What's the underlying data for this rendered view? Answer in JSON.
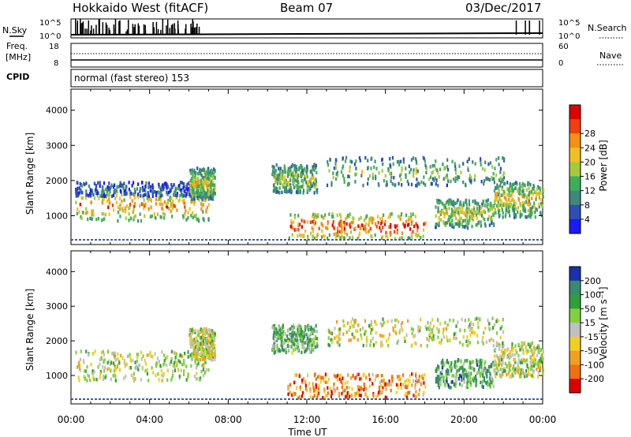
{
  "header": {
    "radar": "Hokkaido West (fitACF)",
    "beam": "Beam 07",
    "date": "03/Dec/2017"
  },
  "summary": {
    "nsky_label": "N.Sky",
    "nsearch_label": "N.Search",
    "nsky_ticks": [
      "10^5",
      "10^0"
    ],
    "nsearch_ticks": [
      "10^5",
      "10^0"
    ],
    "freq_label_1": "Freq.",
    "freq_label_2": "[MHz]",
    "freq_ticks": [
      "18",
      "8"
    ],
    "nave_label": "Nave",
    "nave_ticks": [
      "60",
      "0"
    ],
    "cpid_label": "CPID",
    "cpid_text": "normal (fast stereo) 153"
  },
  "chart_data": [
    {
      "type": "heatmap",
      "name": "power-panel",
      "ylabel": "Slant Range [km]",
      "ylim": [
        180,
        4600
      ],
      "yticks": [
        "1000",
        "2000",
        "3000",
        "4000"
      ],
      "xlim": [
        0,
        24
      ],
      "colorbar": {
        "label": "Power [dB]",
        "ticks": [
          "4",
          "8",
          "12",
          "16",
          "20",
          "24",
          "28"
        ],
        "colors": [
          "#1a1aff",
          "#2e4fb3",
          "#3e8a7a",
          "#3fae5a",
          "#a8c93a",
          "#f0c020",
          "#f59010",
          "#f04010",
          "#e00000"
        ]
      },
      "regions": [
        {
          "t0": 0.2,
          "t1": 7.0,
          "r0": 900,
          "r1": 1750,
          "level": 0.75
        },
        {
          "t0": 0.2,
          "t1": 6.8,
          "r0": 1600,
          "r1": 2000,
          "level": 0.25
        },
        {
          "t0": 6.0,
          "t1": 7.3,
          "r0": 1500,
          "r1": 2400,
          "level": 0.55
        },
        {
          "t0": 10.2,
          "t1": 12.5,
          "r0": 1700,
          "r1": 2500,
          "level": 0.5
        },
        {
          "t0": 11.0,
          "t1": 18.0,
          "r0": 400,
          "r1": 1100,
          "level": 0.9
        },
        {
          "t0": 13.0,
          "t1": 22.0,
          "r0": 1900,
          "r1": 2700,
          "level": 0.45
        },
        {
          "t0": 18.5,
          "t1": 21.5,
          "r0": 700,
          "r1": 1500,
          "level": 0.55
        },
        {
          "t0": 21.5,
          "t1": 24.0,
          "r0": 1000,
          "r1": 2000,
          "level": 0.6
        }
      ]
    },
    {
      "type": "heatmap",
      "name": "velocity-panel",
      "ylabel": "Slant Range [km]",
      "ylim": [
        180,
        4600
      ],
      "yticks": [
        "1000",
        "2000",
        "3000",
        "4000"
      ],
      "xlim": [
        0,
        24
      ],
      "xlabel": "Time UT",
      "xticks": [
        "00:00",
        "04:00",
        "08:00",
        "12:00",
        "16:00",
        "20:00",
        "00:00"
      ],
      "colorbar": {
        "label": "Velocity [m s⁻¹]",
        "ticks": [
          "200",
          "100",
          "50",
          "15",
          "-15",
          "-50",
          "-100",
          "-200"
        ],
        "colors": [
          "#1a30b0",
          "#3a8a70",
          "#2ea03a",
          "#80d040",
          "#c0c0c0",
          "#f0d020",
          "#f0a020",
          "#f07010",
          "#e00000"
        ]
      },
      "regions": [
        {
          "t0": 0.2,
          "t1": 7.0,
          "r0": 900,
          "r1": 1750,
          "level": 0.5
        },
        {
          "t0": 6.0,
          "t1": 7.3,
          "r0": 1500,
          "r1": 2400,
          "level": 0.5
        },
        {
          "t0": 10.2,
          "t1": 12.5,
          "r0": 1700,
          "r1": 2500,
          "level": 0.35
        },
        {
          "t0": 11.0,
          "t1": 18.0,
          "r0": 400,
          "r1": 1100,
          "level": 0.75
        },
        {
          "t0": 13.0,
          "t1": 22.0,
          "r0": 1900,
          "r1": 2700,
          "level": 0.5
        },
        {
          "t0": 18.5,
          "t1": 21.5,
          "r0": 700,
          "r1": 1500,
          "level": 0.3
        },
        {
          "t0": 21.5,
          "t1": 24.0,
          "r0": 1000,
          "r1": 2000,
          "level": 0.5
        }
      ]
    }
  ]
}
